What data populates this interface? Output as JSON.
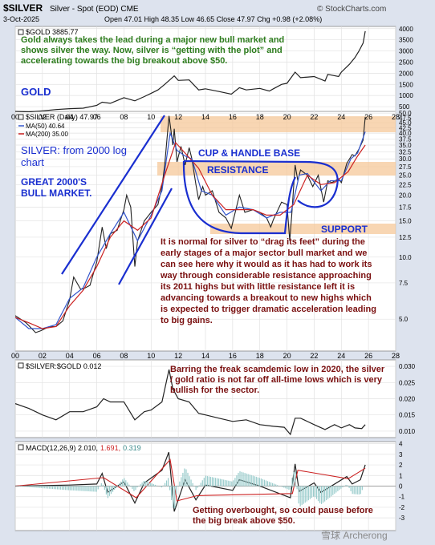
{
  "header": {
    "title": "$SILVER",
    "subtitle": "Silver - Spot (EOD)  CME",
    "credit": "© StockCharts.com",
    "date": "3-Oct-2025",
    "ohlc": "Open 47.01  High 48.35  Low 46.65  Close 47.97  Chg +0.98 (+2.08%)"
  },
  "watermark": "雪球 Archerong",
  "colors": {
    "price": "#222222",
    "ma50": "#3355cc",
    "ma200": "#cc2222",
    "annotation_blue": "#1a2fd0",
    "annotation_green": "#2e7d1e",
    "annotation_darkred": "#7a1010",
    "band": "#f5c89a",
    "panel_bg": "#ffffff",
    "page_bg": "#dde3ee"
  },
  "gold_panel": {
    "legend": "$GOLD 3885.77",
    "label": "GOLD",
    "note": "Gold always takes the lead during a major new bull market and shows silver the way. Now, silver is “getting with the plot” and accelerating towards the big breakout above $50."
  },
  "silver_panel": {
    "legend": "$SILVER (Daily) 47.97",
    "ma50_legend": "MA(50) 40.64",
    "ma200_legend": "MA(200) 35.00",
    "title_note": "SILVER: from 2000 log chart",
    "bull_note": "GREAT 2000'S BULL MARKET.",
    "cup_label": "CUP & HANDLE BASE",
    "resistance_label": "RESISTANCE",
    "support_label": "SUPPORT",
    "commentary": "It is normal for silver to “drag its feet” during the early stages of a major sector bull market and we can see here why it would as it has had to work its way through considerable resistance approaching its 2011 highs but with little resistance left it is advancing towards a breakout to new highs which is expected to trigger dramatic acceleration leading to big gains."
  },
  "ratio_panel": {
    "legend": "$SILVER:$GOLD 0.012",
    "note": "Barring the freak scamdemic low in 2020, the silver / gold ratio is not far off all-time lows which is very bullish for the sector."
  },
  "macd_panel": {
    "legend_prefix": "MACD(12,26,9) 2.010,",
    "legend_signal": "1.691,",
    "legend_hist": "0.319",
    "note": "Getting overbought, so could pause before the big break above $50."
  },
  "chart_data": [
    {
      "type": "line",
      "title": "$GOLD",
      "ylim": [
        250,
        4100
      ],
      "y_ticks": [
        4000,
        3500,
        3000,
        2500,
        2000,
        1500,
        1000,
        500
      ],
      "x_ticks": [
        "00",
        "02",
        "04",
        "06",
        "08",
        "10",
        "12",
        "14",
        "16",
        "18",
        "20",
        "22",
        "24",
        "26",
        "28"
      ],
      "series": [
        {
          "name": "$GOLD",
          "x": [
            2000,
            2001,
            2002,
            2003,
            2004,
            2005,
            2006,
            2006.4,
            2007,
            2008,
            2008.8,
            2009.5,
            2010,
            2010.5,
            2011,
            2011.7,
            2012,
            2012.8,
            2013.5,
            2014,
            2015,
            2015.9,
            2016.5,
            2017,
            2018,
            2018.7,
            2019,
            2019.6,
            2020,
            2020.6,
            2021,
            2022,
            2022.8,
            2023,
            2023.8,
            2024,
            2024.6,
            2025,
            2025.3,
            2025.6,
            2025.76
          ],
          "y": [
            285,
            265,
            310,
            370,
            410,
            430,
            560,
            700,
            650,
            900,
            760,
            950,
            1100,
            1250,
            1500,
            1880,
            1680,
            1700,
            1250,
            1300,
            1180,
            1060,
            1350,
            1250,
            1320,
            1200,
            1300,
            1500,
            1550,
            2050,
            1800,
            1850,
            1650,
            1950,
            1850,
            2050,
            2400,
            2700,
            3000,
            3350,
            3886
          ]
        }
      ]
    },
    {
      "type": "line",
      "title": "$SILVER (Daily)",
      "scale": "log",
      "ylim": [
        3.5,
        51
      ],
      "y_ticks": [
        50,
        47.5,
        45,
        42.5,
        40,
        37.5,
        35,
        32.5,
        30,
        27.5,
        25,
        22.5,
        20,
        17.5,
        15,
        12.5,
        10,
        7.5,
        5
      ],
      "x_ticks": [
        "00",
        "02",
        "04",
        "06",
        "08",
        "10",
        "12",
        "14",
        "16",
        "18",
        "20",
        "22",
        "24",
        "26",
        "28"
      ],
      "series": [
        {
          "name": "$SILVER",
          "x": [
            2000,
            2000.8,
            2001.5,
            2001.9,
            2002.5,
            2003,
            2003.5,
            2004,
            2004.3,
            2004.8,
            2005,
            2005.5,
            2006,
            2006.4,
            2006.7,
            2007,
            2007.5,
            2008,
            2008.2,
            2008.5,
            2008.8,
            2009,
            2009.5,
            2010,
            2010.5,
            2010.8,
            2011,
            2011.32,
            2011.6,
            2011.7,
            2011.9,
            2012.2,
            2012.5,
            2012.8,
            2013,
            2013.3,
            2013.5,
            2013.8,
            2014,
            2014.5,
            2015,
            2015.5,
            2015.9,
            2016.5,
            2016.9,
            2017.5,
            2018,
            2018.5,
            2018.8,
            2019,
            2019.6,
            2020.0,
            2020.2,
            2020.35,
            2020.6,
            2020.8,
            2021,
            2021.5,
            2021.9,
            2022.3,
            2022.7,
            2023,
            2023.3,
            2023.8,
            2024,
            2024.4,
            2024.8,
            2025,
            2025.3,
            2025.6,
            2025.76
          ],
          "y": [
            5.2,
            4.8,
            4.3,
            4.4,
            4.6,
            4.6,
            4.9,
            6.2,
            8.0,
            7.0,
            7.0,
            7.3,
            9.5,
            14.0,
            11.0,
            13.0,
            13.5,
            17.0,
            20.0,
            17.5,
            9.0,
            12.0,
            15.0,
            16.5,
            18.0,
            22.0,
            28.0,
            48.5,
            35.0,
            42.0,
            29.0,
            34.5,
            28.0,
            34.0,
            30.0,
            22.5,
            19.0,
            22.0,
            20.0,
            21.0,
            16.5,
            15.5,
            13.8,
            20.0,
            16.5,
            17.0,
            16.5,
            15.5,
            14.0,
            15.2,
            18.5,
            18.0,
            12.0,
            16.0,
            28.0,
            23.5,
            26.5,
            25.0,
            22.0,
            25.0,
            18.5,
            23.5,
            23.0,
            24.0,
            23.0,
            28.5,
            31.5,
            31.0,
            33.5,
            37.0,
            47.97
          ]
        },
        {
          "name": "MA(50)",
          "x": [
            2000,
            2001,
            2002,
            2003,
            2004,
            2005,
            2006,
            2007,
            2008,
            2009,
            2010,
            2010.8,
            2011.4,
            2011.9,
            2012.5,
            2013,
            2013.7,
            2014.5,
            2015.5,
            2016.5,
            2017.5,
            2018.5,
            2019.5,
            2020.3,
            2020.9,
            2021.5,
            2022.5,
            2023.2,
            2024,
            2024.7,
            2025.2,
            2025.76
          ],
          "y": [
            5.1,
            4.5,
            4.5,
            4.7,
            6.3,
            7.1,
            10.0,
            13.0,
            16.5,
            12.0,
            16.0,
            21.0,
            40.0,
            33.0,
            31.0,
            30.0,
            21.0,
            20.0,
            16.0,
            17.5,
            17.0,
            15.5,
            16.5,
            16.5,
            25.0,
            25.5,
            21.0,
            23.5,
            23.5,
            30.0,
            32.0,
            40.64
          ]
        },
        {
          "name": "MA(200)",
          "x": [
            2000,
            2001,
            2002,
            2003,
            2004,
            2005,
            2006,
            2007,
            2008,
            2009,
            2010,
            2011,
            2011.8,
            2012.5,
            2013.5,
            2014.5,
            2015.5,
            2016.5,
            2017.5,
            2018.5,
            2019.5,
            2020.5,
            2021.5,
            2022.5,
            2023.5,
            2024.5,
            2025.2,
            2025.76
          ],
          "y": [
            5.1,
            4.8,
            4.5,
            4.6,
            5.8,
            6.9,
            9.0,
            12.5,
            15.0,
            13.5,
            15.5,
            25.0,
            36.0,
            32.0,
            27.0,
            20.0,
            17.0,
            17.0,
            17.0,
            16.0,
            16.0,
            18.0,
            25.0,
            22.5,
            23.0,
            26.0,
            31.0,
            35.0
          ]
        }
      ]
    },
    {
      "type": "line",
      "title": "$SILVER:$GOLD",
      "ylim": [
        0.008,
        0.032
      ],
      "y_ticks": [
        0.03,
        0.025,
        0.02,
        0.015,
        0.01
      ],
      "series": [
        {
          "name": "$SILVER:$GOLD",
          "x": [
            2000,
            2001,
            2002,
            2003,
            2004,
            2005,
            2006,
            2006.5,
            2007,
            2008,
            2008.8,
            2009.5,
            2010,
            2010.8,
            2011.32,
            2011.6,
            2012,
            2012.8,
            2013.5,
            2014,
            2015,
            2016,
            2017,
            2018,
            2019,
            2019.8,
            2020.25,
            2020.6,
            2021,
            2022,
            2022.8,
            2023.5,
            2024,
            2024.6,
            2025,
            2025.5,
            2025.76
          ],
          "y": [
            0.0185,
            0.017,
            0.015,
            0.0135,
            0.016,
            0.016,
            0.0175,
            0.02,
            0.019,
            0.019,
            0.0135,
            0.016,
            0.0165,
            0.019,
            0.029,
            0.023,
            0.02,
            0.019,
            0.0155,
            0.015,
            0.014,
            0.013,
            0.0135,
            0.012,
            0.0115,
            0.0112,
            0.009,
            0.014,
            0.014,
            0.012,
            0.0105,
            0.012,
            0.011,
            0.012,
            0.011,
            0.0108,
            0.012
          ]
        }
      ]
    },
    {
      "type": "line",
      "title": "MACD(12,26,9)",
      "ylim": [
        -4.2,
        4.2
      ],
      "y_ticks": [
        4,
        3,
        2,
        1,
        0,
        -1,
        -2,
        -3
      ],
      "series": [
        {
          "name": "MACD",
          "x": [
            2000,
            2004,
            2006,
            2006.4,
            2006.8,
            2008,
            2008.8,
            2009.5,
            2010.8,
            2011.3,
            2011.7,
            2012.5,
            2013.3,
            2014,
            2016,
            2016.5,
            2018,
            2020.25,
            2020.6,
            2020.9,
            2022,
            2022.5,
            2024.4,
            2024.8,
            2025.4,
            2025.76
          ],
          "y": [
            0,
            0.1,
            0.2,
            1.2,
            -0.6,
            0.4,
            -1.6,
            0.3,
            1.5,
            3.2,
            -2.4,
            0.6,
            -1.3,
            0.1,
            -0.4,
            0.6,
            0.0,
            -1.1,
            2.1,
            -0.5,
            0.3,
            -0.6,
            0.9,
            0.2,
            0.6,
            2.01
          ]
        },
        {
          "name": "Signal",
          "x": [
            2000,
            2006.5,
            2008.9,
            2011.4,
            2011.9,
            2013.4,
            2020.4,
            2020.8,
            2024.5,
            2025.76
          ],
          "y": [
            0,
            0.8,
            -1.1,
            2.5,
            -1.4,
            -0.9,
            -0.7,
            1.5,
            0.7,
            1.691
          ]
        }
      ]
    }
  ]
}
